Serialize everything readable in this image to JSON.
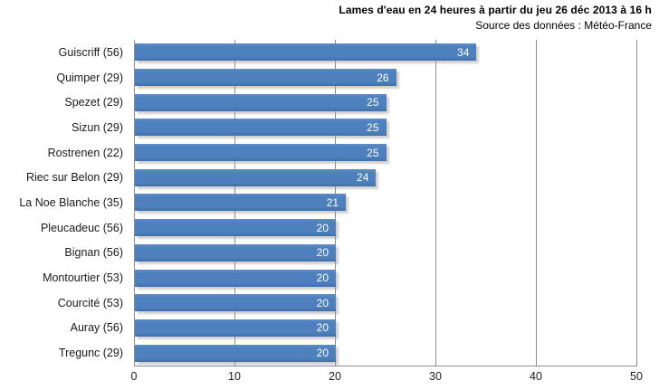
{
  "chart_data": {
    "type": "bar",
    "orientation": "horizontal",
    "title": "Lames d'eau en 24 heures à partir du jeu 26 déc 2013 à 16 h",
    "subtitle": "Source des données : Météo-France",
    "categories": [
      "Guiscriff (56)",
      "Quimper (29)",
      "Spezet (29)",
      "Sizun (29)",
      "Rostrenen (22)",
      "Riec sur Belon (29)",
      "La Noe Blanche (35)",
      "Pleucadeuc (56)",
      "Bignan (56)",
      "Montourtier (53)",
      "Courcité (53)",
      "Auray (56)",
      "Tregunc (29)"
    ],
    "values": [
      34,
      26,
      25,
      25,
      25,
      24,
      21,
      20,
      20,
      20,
      20,
      20,
      20
    ],
    "xlim": [
      0,
      50
    ],
    "x_ticks": [
      0,
      10,
      20,
      30,
      40,
      50
    ],
    "xlabel": "",
    "ylabel": "",
    "grid": "vertical-only",
    "legend": "none",
    "bar_color": "#4d80bd",
    "value_label_color": "#ffffff",
    "gridline_color": "#8e8e8e",
    "text_color": "#1a1a1a"
  }
}
